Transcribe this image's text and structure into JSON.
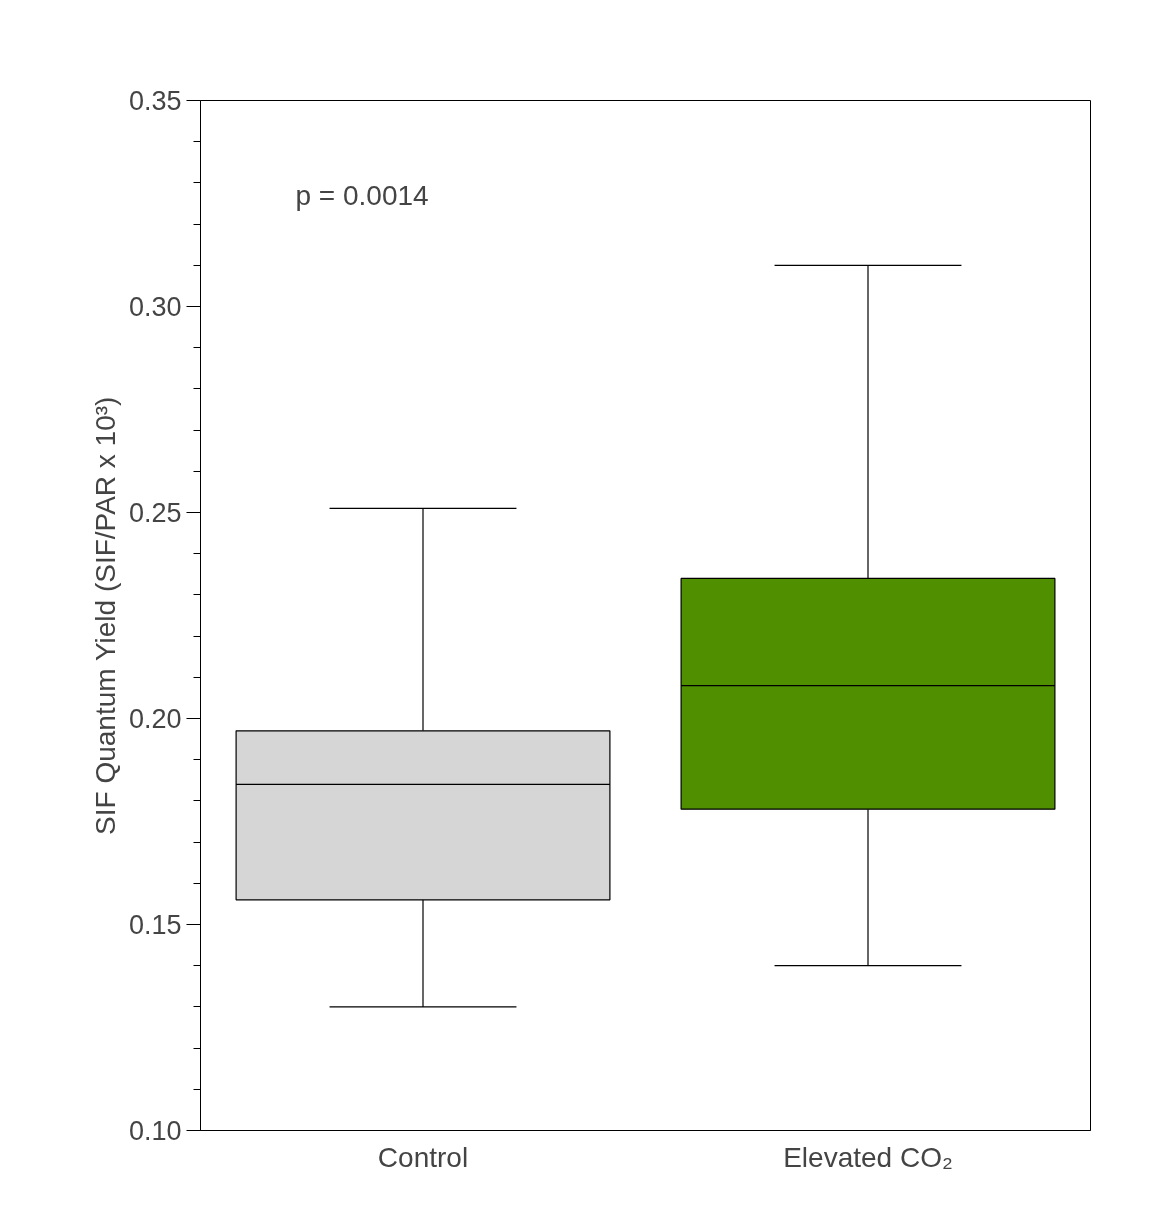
{
  "chart_data": {
    "type": "box",
    "ylabel": "SIF Quantum Yield (SIF/PAR x 10³)",
    "categories": [
      "Control",
      "Elevated CO₂"
    ],
    "boxes": [
      {
        "low": 0.13,
        "q1": 0.156,
        "median": 0.184,
        "q3": 0.197,
        "high": 0.251
      },
      {
        "low": 0.14,
        "q1": 0.178,
        "median": 0.208,
        "q3": 0.234,
        "high": 0.31
      }
    ],
    "colors": [
      "#d6d6d6",
      "#4f8f00"
    ],
    "ylim": [
      0.1,
      0.35
    ],
    "yticks": [
      {
        "value": 0.1,
        "label": "0.10"
      },
      {
        "value": 0.11,
        "label": null
      },
      {
        "value": 0.12,
        "label": null
      },
      {
        "value": 0.13,
        "label": null
      },
      {
        "value": 0.14,
        "label": null
      },
      {
        "value": 0.15,
        "label": "0.15"
      },
      {
        "value": 0.16,
        "label": null
      },
      {
        "value": 0.17,
        "label": null
      },
      {
        "value": 0.18,
        "label": null
      },
      {
        "value": 0.19,
        "label": null
      },
      {
        "value": 0.2,
        "label": "0.20"
      },
      {
        "value": 0.21,
        "label": null
      },
      {
        "value": 0.22,
        "label": null
      },
      {
        "value": 0.23,
        "label": null
      },
      {
        "value": 0.24,
        "label": null
      },
      {
        "value": 0.25,
        "label": "0.25"
      },
      {
        "value": 0.26,
        "label": null
      },
      {
        "value": 0.27,
        "label": null
      },
      {
        "value": 0.28,
        "label": null
      },
      {
        "value": 0.29,
        "label": null
      },
      {
        "value": 0.3,
        "label": "0.30"
      },
      {
        "value": 0.31,
        "label": null
      },
      {
        "value": 0.32,
        "label": null
      },
      {
        "value": 0.33,
        "label": null
      },
      {
        "value": 0.34,
        "label": null
      },
      {
        "value": 0.35,
        "label": "0.35"
      }
    ],
    "annotations": [
      "p = 0.0014"
    ]
  }
}
